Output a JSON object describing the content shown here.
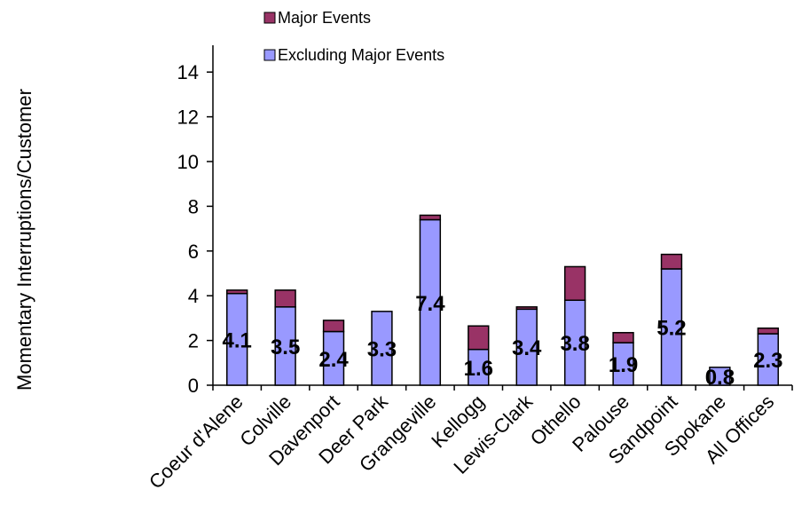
{
  "chart_data": {
    "type": "bar",
    "stacked": true,
    "ylabel": "Momentary Interruptions/Customer",
    "xlabel": "",
    "ylim": [
      0,
      15
    ],
    "yticks": [
      0,
      2,
      4,
      6,
      8,
      10,
      12,
      14
    ],
    "grid": false,
    "legend_position": "top",
    "categories": [
      "Coeur d'Alene",
      "Colville",
      "Davenport",
      "Deer Park",
      "Grangeville",
      "Kellogg",
      "Lewis-Clark",
      "Othello",
      "Palouse",
      "Sandpoint",
      "Spokane",
      "All Offices"
    ],
    "series": [
      {
        "name": "Excluding Major Events",
        "color": "#9999ff",
        "values": [
          4.1,
          3.5,
          2.4,
          3.3,
          7.4,
          1.6,
          3.4,
          3.8,
          1.9,
          5.2,
          0.8,
          2.3
        ],
        "labels": [
          "4.1",
          "3.5",
          "2.4",
          "3.3",
          "7.4",
          "1.6",
          "3.4",
          "3.8",
          "1.9",
          "5.2",
          "0.8",
          "2.3"
        ]
      },
      {
        "name": "Major Events",
        "color": "#993366",
        "values": [
          0.15,
          0.75,
          0.5,
          0.0,
          0.2,
          1.05,
          0.1,
          1.5,
          0.45,
          0.65,
          0.0,
          0.25
        ]
      }
    ]
  }
}
